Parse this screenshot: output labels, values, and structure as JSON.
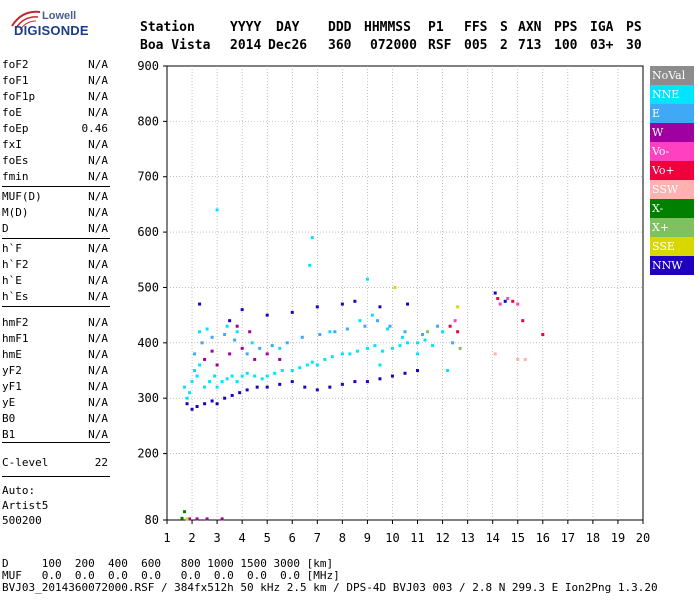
{
  "brand": {
    "top": "Lowell",
    "bottom": "DIGISONDE"
  },
  "header": {
    "labels": [
      "Station",
      "YYYY",
      "DAY",
      "DDD",
      "HHMMSS",
      "P1",
      "FFS",
      "S",
      "AXN",
      "PPS",
      "IGA",
      "PS"
    ],
    "values": [
      "Boa Vista",
      "2014",
      "Dec26",
      "360",
      "072000",
      "RSF",
      "005",
      "2",
      "713",
      "100",
      "03+",
      "30"
    ]
  },
  "params": [
    {
      "label": "foF2",
      "value": "N/A"
    },
    {
      "label": "foF1",
      "value": "N/A"
    },
    {
      "label": "foF1p",
      "value": "N/A"
    },
    {
      "label": "foE",
      "value": "N/A"
    },
    {
      "label": "foEp",
      "value": "0.46"
    },
    {
      "label": "fxI",
      "value": "N/A"
    },
    {
      "label": "foEs",
      "value": "N/A"
    },
    {
      "label": "fmin",
      "value": "N/A"
    },
    {
      "label": "MUF(D)",
      "value": "N/A"
    },
    {
      "label": "M(D)",
      "value": "N/A"
    },
    {
      "label": "D",
      "value": "N/A"
    },
    {
      "label": "h`F",
      "value": "N/A"
    },
    {
      "label": "h`F2",
      "value": "N/A"
    },
    {
      "label": "h`E",
      "value": "N/A"
    },
    {
      "label": "h`Es",
      "value": "N/A"
    },
    {
      "label": "hmF2",
      "value": "N/A"
    },
    {
      "label": "hmF1",
      "value": "N/A"
    },
    {
      "label": "hmE",
      "value": "N/A"
    },
    {
      "label": "yF2",
      "value": "N/A"
    },
    {
      "label": "yF1",
      "value": "N/A"
    },
    {
      "label": "yE",
      "value": "N/A"
    },
    {
      "label": "B0",
      "value": "N/A"
    },
    {
      "label": "B1",
      "value": "N/A"
    },
    {
      "label": "C-level",
      "value": "22"
    }
  ],
  "autoscaling": [
    "Auto:",
    "Artist5",
    "500200"
  ],
  "legend": [
    {
      "label": "NoVal",
      "color": "#8c8c8c"
    },
    {
      "label": "NNE",
      "color": "#00e5ff"
    },
    {
      "label": "E",
      "color": "#3fa9f5"
    },
    {
      "label": "W",
      "color": "#a000a0"
    },
    {
      "label": "Vo-",
      "color": "#ff40c0"
    },
    {
      "label": "Vo+",
      "color": "#f0003c"
    },
    {
      "label": "SSW",
      "color": "#ffb0b0"
    },
    {
      "label": "X-",
      "color": "#008000"
    },
    {
      "label": "X+",
      "color": "#80c060"
    },
    {
      "label": "SSE",
      "color": "#d8d800"
    },
    {
      "label": "NNW",
      "color": "#2000c0"
    }
  ],
  "footer": {
    "d_row": "D     100  200  400  600   800 1000 1500 3000 [km]",
    "muf_row": "MUF   0.0  0.0  0.0  0.0   0.0  0.0  0.0  0.0 [MHz]",
    "file_row": "BVJ03_2014360072000.RSF / 384fx512h 50 kHz 2.5 km / DPS-4D BVJ03 003 / 2.8 N 299.3 E Ion2Png 1.3.20"
  },
  "chart_data": {
    "type": "scatter",
    "xlim": [
      1,
      20
    ],
    "ylim": [
      80,
      900
    ],
    "x_ticks": [
      1,
      2,
      3,
      4,
      5,
      6,
      7,
      8,
      9,
      10,
      11,
      12,
      13,
      14,
      15,
      16,
      17,
      18,
      19,
      20
    ],
    "y_ticks": [
      80,
      200,
      300,
      400,
      500,
      600,
      700,
      800,
      900
    ],
    "grid": true,
    "series": [
      {
        "name": "NNE",
        "color": "#00e5ff",
        "points": [
          [
            1.7,
            320
          ],
          [
            1.8,
            300
          ],
          [
            1.9,
            310
          ],
          [
            2.0,
            330
          ],
          [
            2.1,
            350
          ],
          [
            2.2,
            340
          ],
          [
            2.3,
            360
          ],
          [
            2.5,
            320
          ],
          [
            2.7,
            330
          ],
          [
            2.9,
            340
          ],
          [
            3.0,
            320
          ],
          [
            3.2,
            330
          ],
          [
            3.4,
            335
          ],
          [
            3.6,
            340
          ],
          [
            3.8,
            330
          ],
          [
            4.0,
            340
          ],
          [
            4.2,
            345
          ],
          [
            4.5,
            340
          ],
          [
            4.8,
            335
          ],
          [
            5.0,
            340
          ],
          [
            5.3,
            345
          ],
          [
            5.6,
            350
          ],
          [
            6.0,
            350
          ],
          [
            6.3,
            355
          ],
          [
            6.6,
            360
          ],
          [
            6.8,
            365
          ],
          [
            7.0,
            360
          ],
          [
            7.3,
            370
          ],
          [
            7.6,
            375
          ],
          [
            8.0,
            380
          ],
          [
            8.3,
            380
          ],
          [
            8.6,
            385
          ],
          [
            9.0,
            390
          ],
          [
            9.3,
            395
          ],
          [
            9.6,
            385
          ],
          [
            10.0,
            390
          ],
          [
            10.3,
            395
          ],
          [
            10.6,
            400
          ],
          [
            11.0,
            400
          ],
          [
            11.3,
            405
          ],
          [
            11.6,
            395
          ],
          [
            12.0,
            420
          ],
          [
            6.7,
            540
          ],
          [
            6.8,
            590
          ],
          [
            9.0,
            515
          ],
          [
            3.0,
            640
          ],
          [
            2.3,
            420
          ],
          [
            2.6,
            425
          ],
          [
            3.4,
            430
          ],
          [
            8.7,
            440
          ],
          [
            9.2,
            450
          ],
          [
            9.8,
            425
          ],
          [
            10.4,
            410
          ],
          [
            12.2,
            350
          ],
          [
            11.0,
            380
          ],
          [
            7.5,
            420
          ],
          [
            5.5,
            390
          ],
          [
            4.4,
            400
          ],
          [
            3.8,
            420
          ],
          [
            9.5,
            360
          ]
        ]
      },
      {
        "name": "E",
        "color": "#3fa9f5",
        "points": [
          [
            2.1,
            380
          ],
          [
            2.4,
            400
          ],
          [
            2.8,
            410
          ],
          [
            3.3,
            415
          ],
          [
            3.7,
            405
          ],
          [
            4.2,
            380
          ],
          [
            4.7,
            390
          ],
          [
            5.2,
            395
          ],
          [
            5.8,
            400
          ],
          [
            6.4,
            410
          ],
          [
            7.1,
            415
          ],
          [
            7.7,
            420
          ],
          [
            8.2,
            425
          ],
          [
            8.9,
            430
          ],
          [
            9.4,
            440
          ],
          [
            9.9,
            430
          ],
          [
            10.5,
            420
          ],
          [
            11.2,
            415
          ],
          [
            11.8,
            430
          ],
          [
            12.4,
            400
          ]
        ]
      },
      {
        "name": "W",
        "color": "#a000a0",
        "points": [
          [
            2.5,
            370
          ],
          [
            3.0,
            360
          ],
          [
            3.5,
            380
          ],
          [
            4.0,
            390
          ],
          [
            4.5,
            370
          ],
          [
            5.0,
            380
          ],
          [
            3.8,
            430
          ],
          [
            4.3,
            420
          ],
          [
            2.8,
            385
          ],
          [
            5.5,
            370
          ],
          [
            1.9,
            82
          ],
          [
            2.2,
            82
          ],
          [
            2.6,
            82
          ],
          [
            3.2,
            82
          ]
        ]
      },
      {
        "name": "Vo-",
        "color": "#ff40c0",
        "points": [
          [
            14.3,
            470
          ],
          [
            14.6,
            480
          ],
          [
            15.0,
            470
          ],
          [
            12.5,
            440
          ]
        ]
      },
      {
        "name": "Vo+",
        "color": "#f0003c",
        "points": [
          [
            12.3,
            430
          ],
          [
            12.6,
            420
          ],
          [
            14.2,
            480
          ],
          [
            14.8,
            475
          ],
          [
            16.0,
            415
          ],
          [
            15.2,
            440
          ]
        ]
      },
      {
        "name": "SSW",
        "color": "#ffb0b0",
        "points": [
          [
            14.1,
            380
          ],
          [
            15.0,
            370
          ],
          [
            15.3,
            370
          ]
        ]
      },
      {
        "name": "X-",
        "color": "#008000",
        "points": [
          [
            1.7,
            95
          ],
          [
            1.6,
            83
          ]
        ]
      },
      {
        "name": "X+",
        "color": "#80c060",
        "points": [
          [
            12.7,
            390
          ],
          [
            11.4,
            420
          ]
        ]
      },
      {
        "name": "SSE",
        "color": "#d8d800",
        "points": [
          [
            10.1,
            500
          ],
          [
            12.6,
            465
          ],
          [
            1.8,
            82
          ]
        ]
      },
      {
        "name": "NNW",
        "color": "#2000c0",
        "points": [
          [
            1.8,
            290
          ],
          [
            2.0,
            280
          ],
          [
            2.2,
            285
          ],
          [
            2.5,
            290
          ],
          [
            2.8,
            295
          ],
          [
            3.0,
            290
          ],
          [
            3.3,
            300
          ],
          [
            3.6,
            305
          ],
          [
            3.9,
            310
          ],
          [
            4.2,
            315
          ],
          [
            4.6,
            320
          ],
          [
            5.0,
            320
          ],
          [
            5.5,
            325
          ],
          [
            6.0,
            330
          ],
          [
            6.5,
            320
          ],
          [
            7.0,
            315
          ],
          [
            7.5,
            320
          ],
          [
            8.0,
            325
          ],
          [
            8.5,
            330
          ],
          [
            9.0,
            330
          ],
          [
            9.5,
            335
          ],
          [
            10.0,
            340
          ],
          [
            10.5,
            345
          ],
          [
            11.0,
            350
          ],
          [
            2.3,
            470
          ],
          [
            3.5,
            440
          ],
          [
            4.0,
            460
          ],
          [
            5.0,
            450
          ],
          [
            6.0,
            455
          ],
          [
            7.0,
            465
          ],
          [
            8.0,
            470
          ],
          [
            8.5,
            475
          ],
          [
            9.5,
            465
          ],
          [
            14.1,
            490
          ],
          [
            14.5,
            475
          ],
          [
            10.6,
            470
          ]
        ]
      }
    ]
  }
}
